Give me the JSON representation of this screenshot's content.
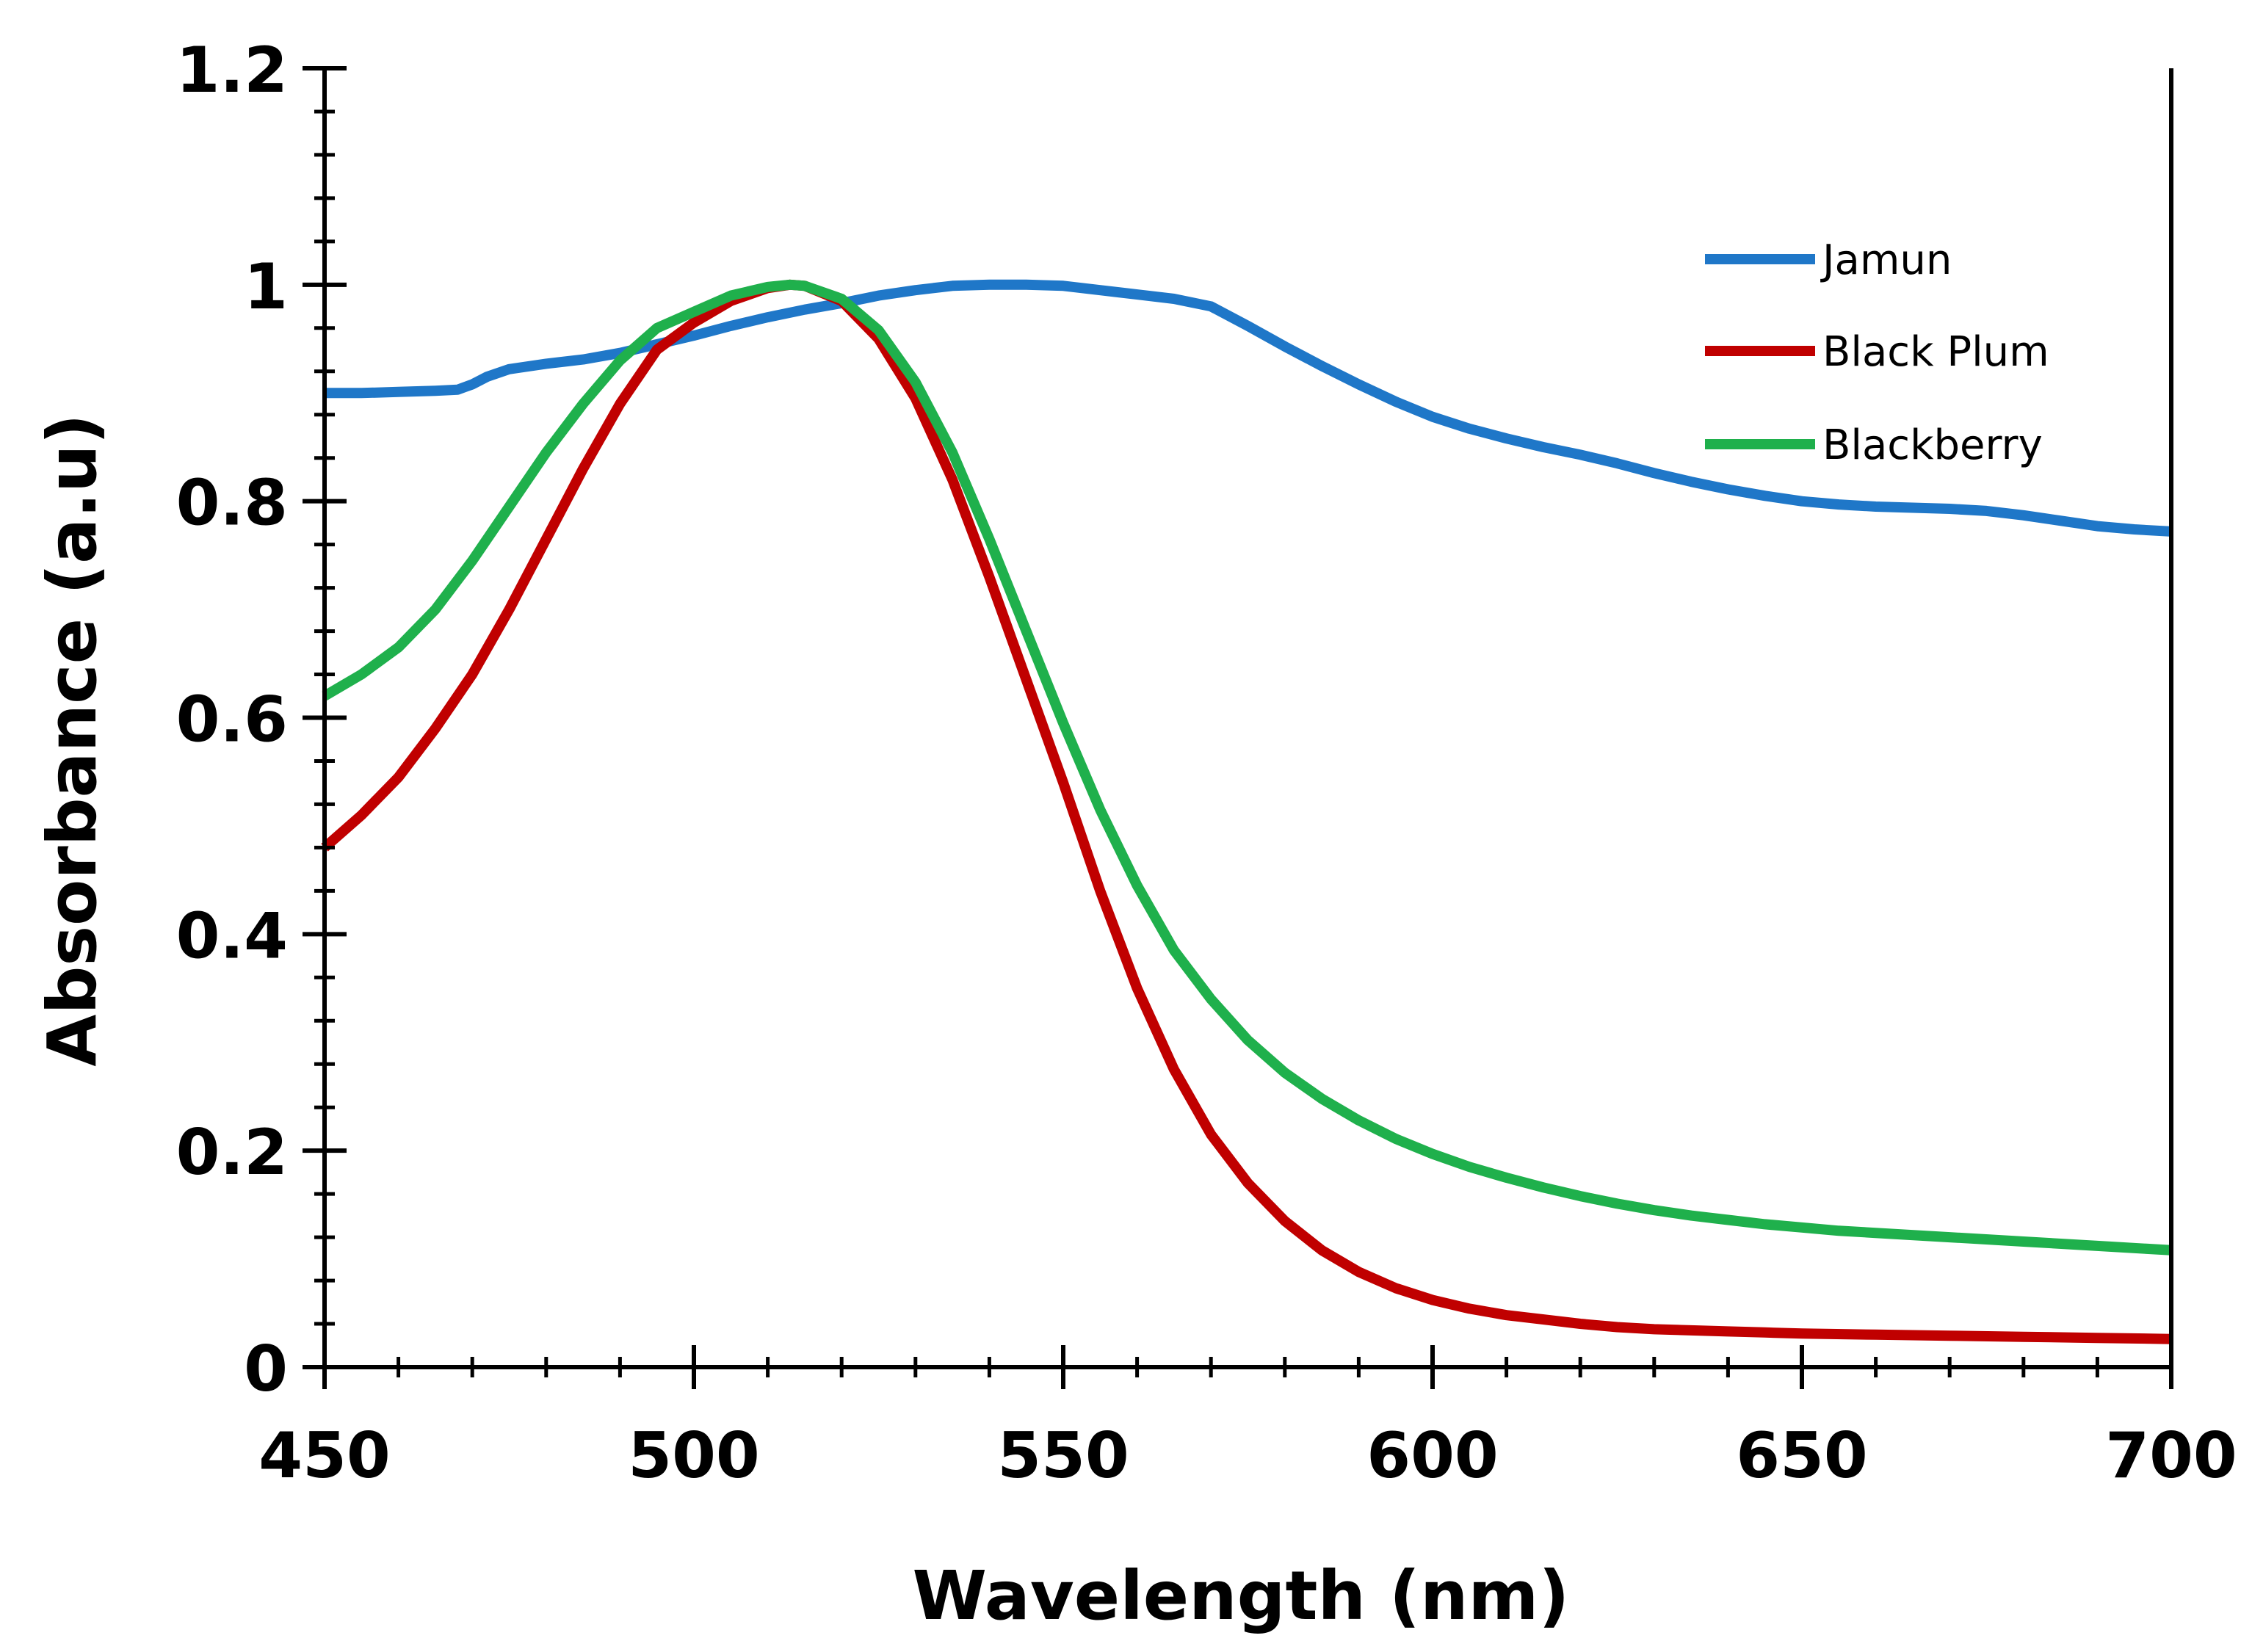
{
  "chart_data": {
    "type": "line",
    "title": "",
    "xlabel": "Wavelength (nm)",
    "ylabel": "Absorbance (a.u)",
    "xlim": [
      450,
      700
    ],
    "ylim": [
      0,
      1.2
    ],
    "x_ticks": [
      450,
      500,
      550,
      600,
      650,
      700
    ],
    "x_tick_labels": [
      "450",
      "500",
      "550",
      "600",
      "650",
      "700"
    ],
    "y_ticks": [
      0,
      0.2,
      0.4,
      0.6,
      0.8,
      1,
      1.2
    ],
    "y_tick_labels": [
      "0",
      "0.2",
      "0.4",
      "0.6",
      "0.8",
      "1",
      "1.2"
    ],
    "grid": false,
    "legend_position": "top-right",
    "series": [
      {
        "name": "Jamun",
        "color": "#1F77C8",
        "x": [
          450,
          455,
          460,
          465,
          468,
          470,
          472,
          475,
          480,
          485,
          490,
          495,
          500,
          505,
          510,
          515,
          520,
          525,
          530,
          535,
          540,
          545,
          550,
          555,
          560,
          565,
          570,
          575,
          580,
          585,
          590,
          595,
          600,
          605,
          610,
          615,
          620,
          625,
          630,
          635,
          640,
          645,
          650,
          655,
          660,
          665,
          670,
          675,
          680,
          685,
          690,
          695,
          700
        ],
        "values": [
          0.9,
          0.9,
          0.901,
          0.902,
          0.903,
          0.908,
          0.915,
          0.922,
          0.927,
          0.931,
          0.937,
          0.945,
          0.953,
          0.962,
          0.97,
          0.977,
          0.983,
          0.99,
          0.995,
          0.999,
          1.0,
          1.0,
          0.999,
          0.995,
          0.991,
          0.987,
          0.98,
          0.962,
          0.943,
          0.925,
          0.908,
          0.892,
          0.878,
          0.867,
          0.858,
          0.85,
          0.843,
          0.835,
          0.826,
          0.818,
          0.811,
          0.805,
          0.8,
          0.797,
          0.795,
          0.794,
          0.793,
          0.791,
          0.787,
          0.782,
          0.777,
          0.774,
          0.772
        ]
      },
      {
        "name": "Black Plum",
        "color": "#C00000",
        "x": [
          450,
          455,
          460,
          465,
          470,
          475,
          480,
          485,
          490,
          495,
          500,
          505,
          510,
          513,
          515,
          520,
          525,
          530,
          535,
          540,
          545,
          550,
          555,
          560,
          565,
          570,
          575,
          580,
          585,
          590,
          595,
          600,
          605,
          610,
          615,
          620,
          625,
          630,
          635,
          640,
          645,
          650,
          660,
          670,
          680,
          690,
          700
        ],
        "values": [
          0.48,
          0.51,
          0.545,
          0.59,
          0.64,
          0.7,
          0.765,
          0.83,
          0.89,
          0.94,
          0.965,
          0.985,
          0.997,
          1.0,
          0.999,
          0.985,
          0.95,
          0.895,
          0.82,
          0.73,
          0.635,
          0.54,
          0.44,
          0.35,
          0.275,
          0.215,
          0.17,
          0.135,
          0.108,
          0.088,
          0.073,
          0.062,
          0.054,
          0.048,
          0.044,
          0.04,
          0.037,
          0.035,
          0.034,
          0.033,
          0.032,
          0.031,
          0.03,
          0.029,
          0.028,
          0.027,
          0.026
        ]
      },
      {
        "name": "Blackberry",
        "color": "#1FB04C",
        "x": [
          450,
          455,
          460,
          465,
          470,
          475,
          480,
          485,
          490,
          495,
          500,
          505,
          510,
          513,
          515,
          520,
          525,
          530,
          535,
          540,
          545,
          550,
          555,
          560,
          565,
          570,
          575,
          580,
          585,
          590,
          595,
          600,
          605,
          610,
          615,
          620,
          625,
          630,
          635,
          640,
          645,
          650,
          655,
          660,
          670,
          680,
          690,
          700
        ],
        "values": [
          0.62,
          0.64,
          0.665,
          0.7,
          0.745,
          0.795,
          0.845,
          0.89,
          0.93,
          0.96,
          0.975,
          0.99,
          0.998,
          1.0,
          0.999,
          0.987,
          0.958,
          0.91,
          0.845,
          0.765,
          0.68,
          0.595,
          0.515,
          0.445,
          0.385,
          0.34,
          0.302,
          0.272,
          0.248,
          0.228,
          0.211,
          0.197,
          0.185,
          0.175,
          0.166,
          0.158,
          0.151,
          0.145,
          0.14,
          0.136,
          0.132,
          0.129,
          0.126,
          0.124,
          0.12,
          0.116,
          0.112,
          0.108
        ]
      }
    ]
  }
}
